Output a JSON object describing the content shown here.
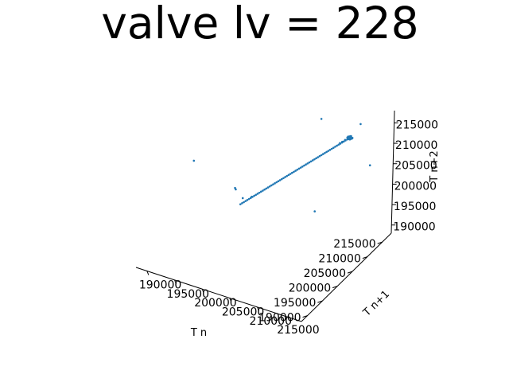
{
  "chart_data": {
    "type": "scatter",
    "projection": "3d",
    "title": "valve lv = 228",
    "xlabel": "T n",
    "ylabel": "T n+1",
    "zlabel": "T n+2",
    "xlim": [
      188000,
      218000
    ],
    "ylim": [
      188000,
      218000
    ],
    "zlim": [
      188000,
      218000
    ],
    "xticks": [
      "190000",
      "195000",
      "200000",
      "205000",
      "210000",
      "215000"
    ],
    "yticks": [
      "190000",
      "195000",
      "200000",
      "205000",
      "210000",
      "215000"
    ],
    "zticks": [
      "190000",
      "195000",
      "200000",
      "205000",
      "210000",
      "215000"
    ],
    "grid": false,
    "point_color": "#1f77b4",
    "series": [
      {
        "points": [
          [
            200100,
            200150,
            200050
          ],
          [
            200300,
            200350,
            200250
          ],
          [
            200500,
            200550,
            200450
          ],
          [
            200700,
            200750,
            200650
          ],
          [
            200900,
            200950,
            200850
          ],
          [
            201100,
            201150,
            201050
          ],
          [
            201300,
            201350,
            201250
          ],
          [
            201500,
            201550,
            201450
          ],
          [
            201700,
            201750,
            201650
          ],
          [
            201900,
            201950,
            201850
          ],
          [
            202100,
            202150,
            202050
          ],
          [
            202300,
            202350,
            202250
          ],
          [
            202500,
            202550,
            202450
          ],
          [
            202700,
            202750,
            202650
          ],
          [
            202900,
            202950,
            202850
          ],
          [
            203100,
            203150,
            203050
          ],
          [
            203300,
            203350,
            203250
          ],
          [
            203500,
            203550,
            203450
          ],
          [
            203700,
            203750,
            203650
          ],
          [
            203900,
            203950,
            203850
          ],
          [
            204100,
            204150,
            204050
          ],
          [
            204300,
            204350,
            204250
          ],
          [
            204500,
            204550,
            204450
          ],
          [
            204700,
            204750,
            204650
          ],
          [
            204900,
            204950,
            204850
          ],
          [
            205100,
            205150,
            205050
          ],
          [
            205300,
            205350,
            205250
          ],
          [
            205500,
            205550,
            205450
          ],
          [
            205700,
            205750,
            205650
          ],
          [
            205900,
            205950,
            205850
          ],
          [
            206100,
            206150,
            206050
          ],
          [
            206300,
            206350,
            206250
          ],
          [
            206500,
            206550,
            206450
          ],
          [
            206700,
            206750,
            206650
          ],
          [
            206900,
            206950,
            206850
          ],
          [
            207100,
            207150,
            207050
          ],
          [
            207300,
            207350,
            207250
          ],
          [
            207500,
            207550,
            207450
          ],
          [
            207700,
            207750,
            207650
          ],
          [
            207900,
            207950,
            207850
          ],
          [
            208100,
            208150,
            208050
          ],
          [
            208300,
            208350,
            208250
          ],
          [
            208500,
            208550,
            208450
          ],
          [
            208700,
            208750,
            208650
          ],
          [
            208900,
            208950,
            208850
          ],
          [
            209100,
            209150,
            209050
          ],
          [
            209300,
            209350,
            209250
          ],
          [
            209500,
            209550,
            209450
          ],
          [
            209700,
            209750,
            209650
          ],
          [
            209900,
            209950,
            209850
          ],
          [
            210100,
            210150,
            210050
          ],
          [
            210300,
            210350,
            210250
          ],
          [
            210500,
            210550,
            210450
          ],
          [
            210700,
            210750,
            210650
          ],
          [
            210900,
            210950,
            210850
          ],
          [
            211100,
            211150,
            211050
          ],
          [
            211300,
            211350,
            211250
          ],
          [
            211500,
            211550,
            211450
          ],
          [
            211700,
            211750,
            211650
          ],
          [
            211900,
            211950,
            211850
          ],
          [
            212100,
            212150,
            212050
          ],
          [
            212300,
            212350,
            212250
          ],
          [
            212500,
            212550,
            212450
          ],
          [
            212700,
            212750,
            212650
          ],
          [
            212900,
            212950,
            212850
          ],
          [
            212600,
            212900,
            212600
          ],
          [
            212800,
            212500,
            212700
          ],
          [
            213000,
            212700,
            213100
          ],
          [
            212700,
            213100,
            212900
          ],
          [
            213100,
            213000,
            212600
          ],
          [
            212900,
            212800,
            213200
          ],
          [
            212500,
            212600,
            212900
          ],
          [
            213200,
            212900,
            212800
          ],
          [
            212800,
            213200,
            212500
          ],
          [
            213000,
            212500,
            212700
          ],
          [
            212600,
            212700,
            213100
          ],
          [
            212900,
            213100,
            213000
          ],
          [
            213100,
            212600,
            212800
          ],
          [
            212700,
            212800,
            212600
          ],
          [
            212800,
            213000,
            212900
          ],
          [
            212400,
            212800,
            212700
          ],
          [
            213300,
            212800,
            213000
          ],
          [
            212700,
            213300,
            212800
          ],
          [
            212200,
            212400,
            212300
          ],
          [
            211900,
            212000,
            212000
          ],
          [
            211600,
            211800,
            211700
          ],
          [
            201300,
            201700,
            201300
          ],
          [
            204000,
            191000,
            212000
          ],
          [
            217000,
            212000,
            208500
          ],
          [
            207000,
            214000,
            214000
          ],
          [
            201500,
            195500,
            208000
          ],
          [
            212500,
            217000,
            213000
          ],
          [
            212000,
            203000,
            201500
          ],
          [
            194500,
            194500,
            212300
          ],
          [
            199000,
            203000,
            199000
          ]
        ]
      }
    ]
  }
}
